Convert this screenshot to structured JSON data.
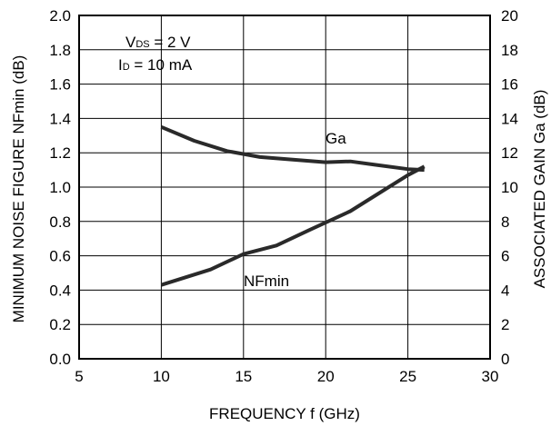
{
  "chart_data": {
    "type": "line",
    "xlabel": "FREQUENCY  f  (GHz)",
    "ylabel_left": "MINIMUM NOISE FIGURE NFmin  (dB)",
    "ylabel_right": "ASSOCIATED GAIN  Ga  (dB)",
    "xlim": [
      5,
      30
    ],
    "ylim_left": [
      0,
      2.0
    ],
    "ylim_right": [
      0,
      20
    ],
    "x_ticks": [
      "5",
      "10",
      "15",
      "20",
      "25",
      "30"
    ],
    "y_left_ticks": [
      "0.0",
      "0.2",
      "0.4",
      "0.6",
      "0.8",
      "1.0",
      "1.2",
      "1.4",
      "1.6",
      "1.8",
      "2.0"
    ],
    "y_right_ticks": [
      "0",
      "2",
      "4",
      "6",
      "8",
      "10",
      "12",
      "14",
      "16",
      "18",
      "20"
    ],
    "grid": true,
    "series": [
      {
        "name": "Ga",
        "axis": "right",
        "x": [
          10,
          12,
          14,
          16,
          18,
          20,
          21.5,
          23,
          25,
          26
        ],
        "y": [
          13.5,
          12.7,
          12.1,
          11.75,
          11.6,
          11.45,
          11.5,
          11.3,
          11.05,
          11.0
        ]
      },
      {
        "name": "NFmin",
        "axis": "left",
        "x": [
          10,
          13,
          15,
          17,
          19,
          21.5,
          23,
          25,
          26
        ],
        "y": [
          0.43,
          0.52,
          0.61,
          0.66,
          0.75,
          0.86,
          0.95,
          1.07,
          1.12
        ]
      }
    ],
    "annotation": {
      "vds_main": "V",
      "vds_sub": "DS",
      "vds_rest": " = 2 V",
      "id_main": "I",
      "id_sub": "D",
      "id_rest": " = 10 mA"
    },
    "line_color": "#2a2a2a"
  }
}
